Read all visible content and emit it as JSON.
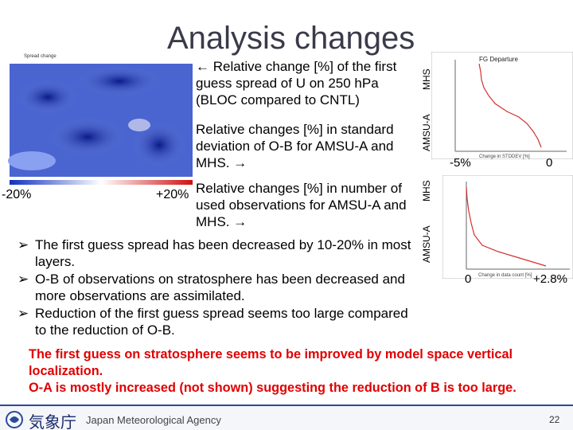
{
  "title": "Analysis changes",
  "map": {
    "scale_min_label": "-20%",
    "scale_max_label": "+20%"
  },
  "notes": [
    "← Relative change [%] of the first guess spread of U on 250 hPa (BLOC compared to CNTL)",
    "Relative changes [%] in standard deviation of O-B for AMSU-A and MHS. →",
    "Relative changes [%] in number of used observations for AMSU-A and MHS. →"
  ],
  "charts": [
    {
      "title": "FG Departure",
      "labels": [
        "MHS",
        "AMSU-A"
      ],
      "x_label": "Change in STDDEV [%]",
      "x_min_label": "-5%",
      "x_max_label": "0"
    },
    {
      "labels": [
        "MHS",
        "AMSU-A"
      ],
      "x_label": "Change in data count [%]",
      "x_min_label": "0",
      "x_max_label": "+2.8%"
    }
  ],
  "bullets": [
    "The first guess spread has been decreased by 10-20% in most layers.",
    "O-B of observations on stratosphere has been decreased and more observations are assimilated.",
    "Reduction of the first guess spread seems too large compared to the reduction of O-B."
  ],
  "conclusion": [
    "The first guess on stratosphere seems to be improved by model space vertical",
    "localization.",
    "O-A is mostly increased (not shown) suggesting the reduction of B is too large."
  ],
  "footer": {
    "agency_ja": "気象庁",
    "agency_en": "Japan Meteorological Agency",
    "page": "22"
  }
}
